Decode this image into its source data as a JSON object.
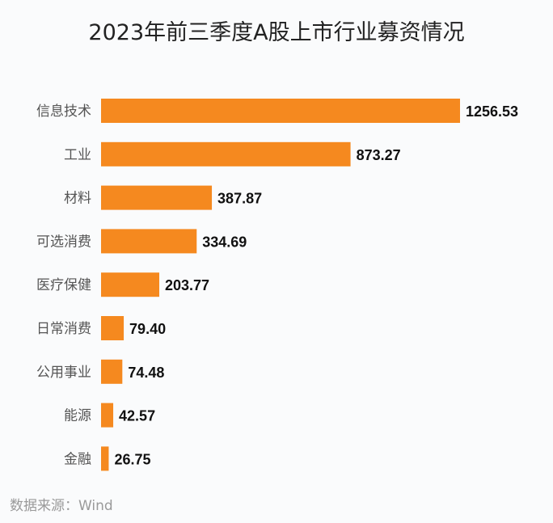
{
  "chart_data": {
    "type": "bar",
    "orientation": "horizontal",
    "title": "2023年前三季度A股上市行业募资情况",
    "categories": [
      "信息技术",
      "工业",
      "材料",
      "可选消费",
      "医疗保健",
      "日常消费",
      "公用事业",
      "能源",
      "金融"
    ],
    "values": [
      1256.53,
      873.27,
      387.87,
      334.69,
      203.77,
      79.4,
      74.48,
      42.57,
      26.75
    ],
    "value_labels": [
      "1256.53",
      "873.27",
      "387.87",
      "334.69",
      "203.77",
      "79.40",
      "74.48",
      "42.57",
      "26.75"
    ],
    "xlabel": "",
    "ylabel": "",
    "xlim": [
      0,
      1256.53
    ],
    "grid": false,
    "bar_color": "#f5891f"
  },
  "source": "数据来源：Wind"
}
